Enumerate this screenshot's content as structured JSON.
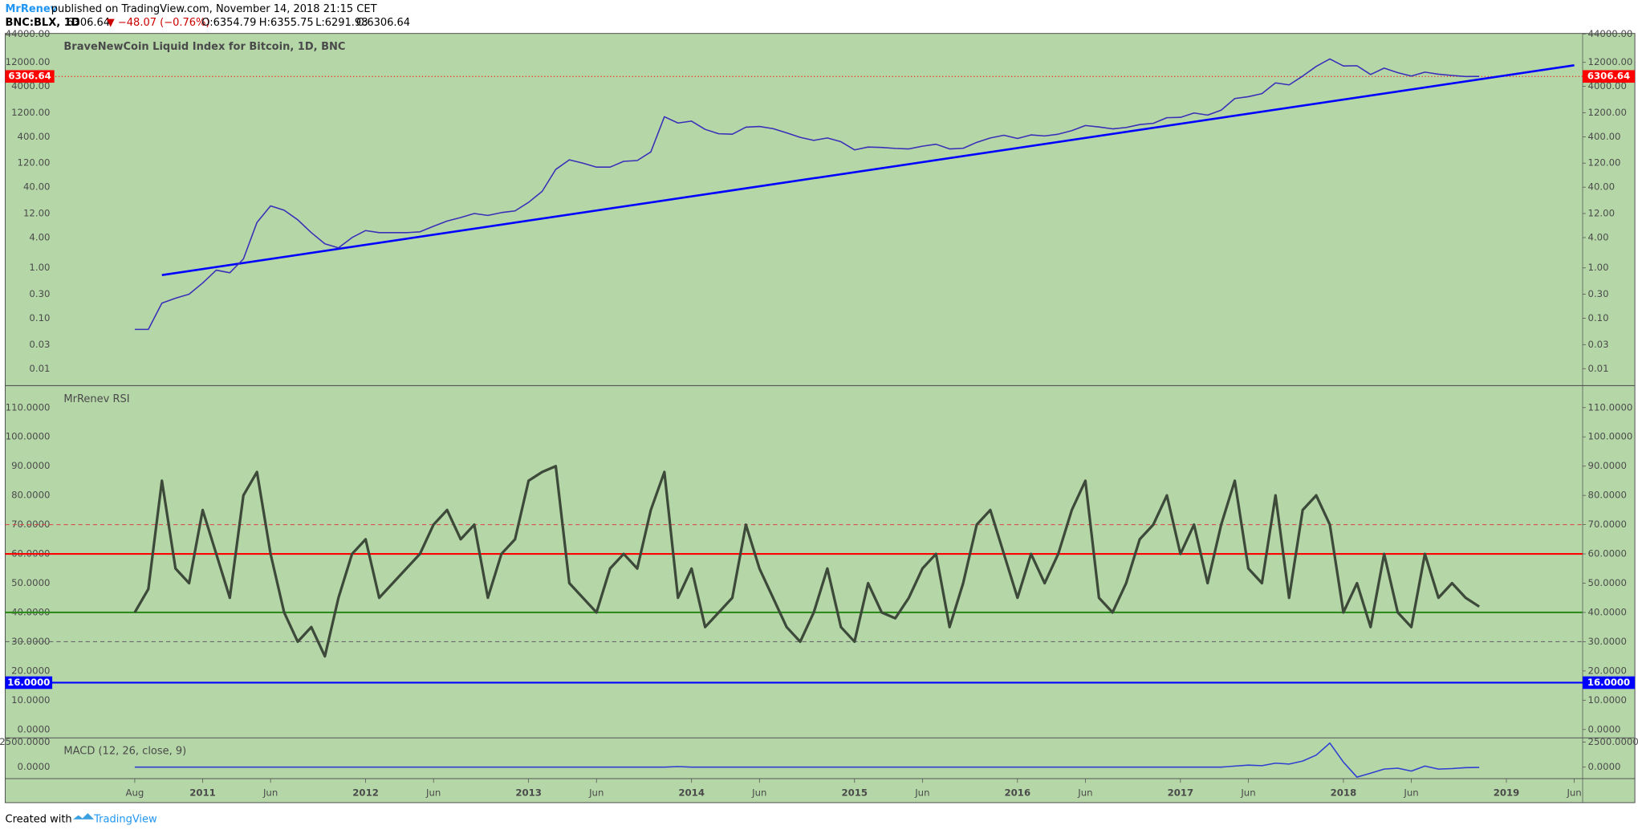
{
  "header": {
    "author": "MrRenev",
    "published": "published on TradingView.com, November 14, 2018 21:15 CET",
    "symbol": "BNC:BLX, 1D",
    "last": "6306.64",
    "change": "▼ −48.07 (−0.76%)",
    "open": "O:6354.79",
    "high": "H:6355.75",
    "low": "L:6291.98",
    "close": "C:6306.64"
  },
  "footer": {
    "created": "Created with",
    "brand": "TradingView"
  },
  "background": "#b5d7a8",
  "chart_data": [
    {
      "type": "line",
      "title": "BraveNewCoin Liquid Index for Bitcoin, 1D, BNC",
      "log_scale": true,
      "xlim": [
        "2010-02",
        "2019-07"
      ],
      "ylim": [
        0.0046,
        45000
      ],
      "yticks": [
        {
          "value": 44000,
          "label": "44000.00"
        },
        {
          "value": 12000,
          "label": "12000.00"
        },
        {
          "value": 4000,
          "label": "4000.00"
        },
        {
          "value": 1200,
          "label": "1200.00"
        },
        {
          "value": 400,
          "label": "400.00"
        },
        {
          "value": 120,
          "label": "120.00"
        },
        {
          "value": 40,
          "label": "40.00"
        },
        {
          "value": 12,
          "label": "12.00"
        },
        {
          "value": 4,
          "label": "4.00"
        },
        {
          "value": 1,
          "label": "1.00"
        },
        {
          "value": 0.3,
          "label": "0.30"
        },
        {
          "value": 0.1,
          "label": "0.10"
        },
        {
          "value": 0.03,
          "label": "0.03"
        },
        {
          "value": 0.01,
          "label": "0.01"
        }
      ],
      "last_value": 6306.64,
      "last_color": "#ff0000",
      "trendline": {
        "x": [
          "2010-10",
          "2019-06"
        ],
        "values": [
          0.72,
          10500
        ],
        "color": "#0000ff"
      },
      "x": [
        "2010-08",
        "2010-09",
        "2010-10",
        "2010-11",
        "2010-12",
        "2011-01",
        "2011-02",
        "2011-03",
        "2011-04",
        "2011-05",
        "2011-06",
        "2011-07",
        "2011-08",
        "2011-09",
        "2011-10",
        "2011-11",
        "2011-12",
        "2012-01",
        "2012-02",
        "2012-03",
        "2012-04",
        "2012-05",
        "2012-06",
        "2012-07",
        "2012-08",
        "2012-09",
        "2012-10",
        "2012-11",
        "2012-12",
        "2013-01",
        "2013-02",
        "2013-03",
        "2013-04",
        "2013-05",
        "2013-06",
        "2013-07",
        "2013-08",
        "2013-09",
        "2013-10",
        "2013-11",
        "2013-12",
        "2014-01",
        "2014-02",
        "2014-03",
        "2014-04",
        "2014-05",
        "2014-06",
        "2014-07",
        "2014-08",
        "2014-09",
        "2014-10",
        "2014-11",
        "2014-12",
        "2015-01",
        "2015-02",
        "2015-03",
        "2015-04",
        "2015-05",
        "2015-06",
        "2015-07",
        "2015-08",
        "2015-09",
        "2015-10",
        "2015-11",
        "2015-12",
        "2016-01",
        "2016-02",
        "2016-03",
        "2016-04",
        "2016-05",
        "2016-06",
        "2016-07",
        "2016-08",
        "2016-09",
        "2016-10",
        "2016-11",
        "2016-12",
        "2017-01",
        "2017-02",
        "2017-03",
        "2017-04",
        "2017-05",
        "2017-06",
        "2017-07",
        "2017-08",
        "2017-09",
        "2017-10",
        "2017-11",
        "2017-12",
        "2018-01",
        "2018-02",
        "2018-03",
        "2018-04",
        "2018-05",
        "2018-06",
        "2018-07",
        "2018-08",
        "2018-09",
        "2018-10",
        "2018-11"
      ],
      "series": [
        {
          "color": "#3a2fb8",
          "values": [
            0.06,
            0.06,
            0.2,
            0.25,
            0.3,
            0.5,
            0.9,
            0.8,
            1.5,
            8,
            17,
            14,
            9,
            5,
            3,
            2.5,
            4,
            5.5,
            5,
            5,
            5,
            5.2,
            6.7,
            8.5,
            10,
            12,
            11,
            12.5,
            13.5,
            20,
            33,
            90,
            140,
            120,
            100,
            100,
            130,
            135,
            200,
            1000,
            750,
            820,
            560,
            460,
            450,
            620,
            640,
            580,
            480,
            390,
            340,
            380,
            320,
            220,
            250,
            245,
            235,
            230,
            260,
            285,
            230,
            236,
            310,
            380,
            430,
            370,
            435,
            415,
            450,
            530,
            670,
            625,
            575,
            610,
            700,
            740,
            960,
            970,
            1190,
            1080,
            1350,
            2300,
            2500,
            2870,
            4700,
            4300,
            6400,
            10000,
            14000,
            10200,
            10300,
            6900,
            9200,
            7500,
            6400,
            7700,
            7000,
            6600,
            6300,
            6306.64
          ]
        }
      ]
    },
    {
      "type": "line",
      "title": "MrRenev RSI",
      "xlim": [
        "2010-02",
        "2019-07"
      ],
      "ylim": [
        -2.86,
        117.5
      ],
      "yticks": [
        {
          "value": 110,
          "label": "110.0000"
        },
        {
          "value": 100,
          "label": "100.0000"
        },
        {
          "value": 90,
          "label": "90.0000"
        },
        {
          "value": 80,
          "label": "80.0000"
        },
        {
          "value": 70,
          "label": "70.0000"
        },
        {
          "value": 60,
          "label": "60.0000"
        },
        {
          "value": 50,
          "label": "50.0000"
        },
        {
          "value": 40,
          "label": "40.0000"
        },
        {
          "value": 30,
          "label": "30.0000"
        },
        {
          "value": 20,
          "label": "20.0000"
        },
        {
          "value": 10,
          "label": "10.0000"
        },
        {
          "value": 0,
          "label": "0.0000"
        }
      ],
      "levels": [
        {
          "value": 70,
          "color": "#e04040",
          "dashed": true
        },
        {
          "value": 60,
          "color": "#ff0000",
          "dashed": false
        },
        {
          "value": 40,
          "color": "#2e8b1e",
          "dashed": false
        },
        {
          "value": 30,
          "color": "#6a6a6a",
          "dashed": true
        },
        {
          "value": 16,
          "label": "16.0000",
          "color": "#0000ff",
          "dashed": false
        }
      ],
      "x": [
        "2010-08",
        "2010-09",
        "2010-10",
        "2010-11",
        "2010-12",
        "2011-01",
        "2011-02",
        "2011-03",
        "2011-04",
        "2011-05",
        "2011-06",
        "2011-07",
        "2011-08",
        "2011-09",
        "2011-10",
        "2011-11",
        "2011-12",
        "2012-01",
        "2012-02",
        "2012-03",
        "2012-04",
        "2012-05",
        "2012-06",
        "2012-07",
        "2012-08",
        "2012-09",
        "2012-10",
        "2012-11",
        "2012-12",
        "2013-01",
        "2013-02",
        "2013-03",
        "2013-04",
        "2013-05",
        "2013-06",
        "2013-07",
        "2013-08",
        "2013-09",
        "2013-10",
        "2013-11",
        "2013-12",
        "2014-01",
        "2014-02",
        "2014-03",
        "2014-04",
        "2014-05",
        "2014-06",
        "2014-07",
        "2014-08",
        "2014-09",
        "2014-10",
        "2014-11",
        "2014-12",
        "2015-01",
        "2015-02",
        "2015-03",
        "2015-04",
        "2015-05",
        "2015-06",
        "2015-07",
        "2015-08",
        "2015-09",
        "2015-10",
        "2015-11",
        "2015-12",
        "2016-01",
        "2016-02",
        "2016-03",
        "2016-04",
        "2016-05",
        "2016-06",
        "2016-07",
        "2016-08",
        "2016-09",
        "2016-10",
        "2016-11",
        "2016-12",
        "2017-01",
        "2017-02",
        "2017-03",
        "2017-04",
        "2017-05",
        "2017-06",
        "2017-07",
        "2017-08",
        "2017-09",
        "2017-10",
        "2017-11",
        "2017-12",
        "2018-01",
        "2018-02",
        "2018-03",
        "2018-04",
        "2018-05",
        "2018-06",
        "2018-07",
        "2018-08",
        "2018-09",
        "2018-10",
        "2018-11"
      ],
      "series": [
        {
          "color": "#3d4a3a",
          "values": [
            40,
            48,
            85,
            55,
            50,
            75,
            60,
            45,
            80,
            88,
            60,
            40,
            30,
            35,
            25,
            45,
            60,
            65,
            45,
            50,
            55,
            60,
            70,
            75,
            65,
            70,
            45,
            60,
            65,
            85,
            88,
            90,
            50,
            45,
            40,
            55,
            60,
            55,
            75,
            88,
            45,
            55,
            35,
            40,
            45,
            70,
            55,
            45,
            35,
            30,
            40,
            55,
            35,
            30,
            50,
            40,
            38,
            45,
            55,
            60,
            35,
            50,
            70,
            75,
            60,
            45,
            60,
            50,
            60,
            75,
            85,
            45,
            40,
            50,
            65,
            70,
            80,
            60,
            70,
            50,
            70,
            85,
            55,
            50,
            80,
            45,
            75,
            80,
            70,
            40,
            50,
            35,
            60,
            40,
            35,
            60,
            45,
            50,
            45,
            42
          ]
        }
      ]
    },
    {
      "type": "line",
      "title": "MACD (12, 26, close, 9)",
      "xlim": [
        "2010-02",
        "2019-07"
      ],
      "ylim": [
        -1146,
        2917
      ],
      "yticks": [
        {
          "value": 2500,
          "label": "2500.0000"
        },
        {
          "value": 0,
          "label": "0.0000"
        }
      ],
      "xticks": [
        {
          "value": "2010-08",
          "label": "Aug"
        },
        {
          "value": "2011-01",
          "label": "2011"
        },
        {
          "value": "2011-06",
          "label": "Jun"
        },
        {
          "value": "2012-01",
          "label": "2012"
        },
        {
          "value": "2012-06",
          "label": "Jun"
        },
        {
          "value": "2013-01",
          "label": "2013"
        },
        {
          "value": "2013-06",
          "label": "Jun"
        },
        {
          "value": "2014-01",
          "label": "2014"
        },
        {
          "value": "2014-06",
          "label": "Jun"
        },
        {
          "value": "2015-01",
          "label": "2015"
        },
        {
          "value": "2015-06",
          "label": "Jun"
        },
        {
          "value": "2016-01",
          "label": "2016"
        },
        {
          "value": "2016-06",
          "label": "Jun"
        },
        {
          "value": "2017-01",
          "label": "2017"
        },
        {
          "value": "2017-06",
          "label": "Jun"
        },
        {
          "value": "2018-01",
          "label": "2018"
        },
        {
          "value": "2018-06",
          "label": "Jun"
        },
        {
          "value": "2019-01",
          "label": "2019"
        },
        {
          "value": "2019-06",
          "label": "Jun"
        }
      ],
      "x": [
        "2010-08",
        "2010-09",
        "2010-10",
        "2010-11",
        "2010-12",
        "2011-01",
        "2011-02",
        "2011-03",
        "2011-04",
        "2011-05",
        "2011-06",
        "2011-07",
        "2011-08",
        "2011-09",
        "2011-10",
        "2011-11",
        "2011-12",
        "2012-01",
        "2012-02",
        "2012-03",
        "2012-04",
        "2012-05",
        "2012-06",
        "2012-07",
        "2012-08",
        "2012-09",
        "2012-10",
        "2012-11",
        "2012-12",
        "2013-01",
        "2013-02",
        "2013-03",
        "2013-04",
        "2013-05",
        "2013-06",
        "2013-07",
        "2013-08",
        "2013-09",
        "2013-10",
        "2013-11",
        "2013-12",
        "2014-01",
        "2014-02",
        "2014-03",
        "2014-04",
        "2014-05",
        "2014-06",
        "2014-07",
        "2014-08",
        "2014-09",
        "2014-10",
        "2014-11",
        "2014-12",
        "2015-01",
        "2015-02",
        "2015-03",
        "2015-04",
        "2015-05",
        "2015-06",
        "2015-07",
        "2015-08",
        "2015-09",
        "2015-10",
        "2015-11",
        "2015-12",
        "2016-01",
        "2016-02",
        "2016-03",
        "2016-04",
        "2016-05",
        "2016-06",
        "2016-07",
        "2016-08",
        "2016-09",
        "2016-10",
        "2016-11",
        "2016-12",
        "2017-01",
        "2017-02",
        "2017-03",
        "2017-04",
        "2017-05",
        "2017-06",
        "2017-07",
        "2017-08",
        "2017-09",
        "2017-10",
        "2017-11",
        "2017-12",
        "2018-01",
        "2018-02",
        "2018-03",
        "2018-04",
        "2018-05",
        "2018-06",
        "2018-07",
        "2018-08",
        "2018-09",
        "2018-10",
        "2018-11"
      ],
      "series": [
        {
          "color": "#2f3fd0",
          "values": [
            0,
            0,
            0,
            0,
            0,
            0,
            0,
            0,
            0,
            0,
            0,
            0,
            0,
            0,
            0,
            0,
            0,
            0,
            0,
            0,
            0,
            0,
            0,
            0,
            0,
            0,
            0,
            0,
            0,
            0,
            0,
            0,
            0,
            0,
            0,
            0,
            0,
            0,
            0,
            0,
            50,
            0,
            0,
            0,
            0,
            0,
            0,
            0,
            0,
            0,
            0,
            0,
            0,
            0,
            0,
            0,
            0,
            0,
            0,
            0,
            0,
            0,
            0,
            0,
            0,
            0,
            0,
            0,
            0,
            0,
            0,
            0,
            0,
            0,
            0,
            0,
            0,
            0,
            0,
            0,
            0,
            100,
            200,
            150,
            400,
            300,
            600,
            1200,
            2400,
            500,
            -1000,
            -600,
            -200,
            -100,
            -400,
            100,
            -200,
            -150,
            -50,
            -30
          ]
        }
      ]
    }
  ]
}
